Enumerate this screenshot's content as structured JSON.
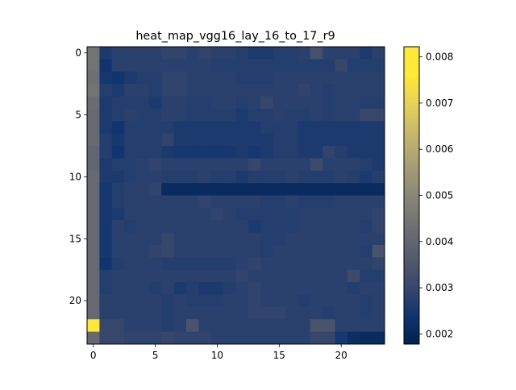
{
  "chart_data": {
    "type": "heatmap",
    "title": "heat_map_vgg16_lay_16_to_17_r9",
    "xlabel": "",
    "ylabel": "",
    "x_ticks": [
      0,
      5,
      10,
      15,
      20
    ],
    "y_ticks": [
      0,
      5,
      10,
      15,
      20
    ],
    "colorbar_ticks": [
      "0.002",
      "0.003",
      "0.004",
      "0.005",
      "0.006",
      "0.007",
      "0.008"
    ],
    "colorbar_range": [
      0.00178,
      0.00822
    ],
    "colormap": "cividis",
    "grid": false,
    "rows": 24,
    "cols": 24,
    "values": [
      [
        0.0044,
        0.0026,
        0.0028,
        0.0028,
        0.0028,
        0.0028,
        0.0029,
        0.0029,
        0.0028,
        0.0029,
        0.0028,
        0.0028,
        0.0027,
        0.0026,
        0.0026,
        0.0027,
        0.0027,
        0.0028,
        0.0033,
        0.0028,
        0.0028,
        0.0028,
        0.0026,
        0.0028
      ],
      [
        0.0044,
        0.0024,
        0.0028,
        0.0028,
        0.0028,
        0.0028,
        0.0028,
        0.0028,
        0.0028,
        0.0028,
        0.0027,
        0.0027,
        0.0027,
        0.0027,
        0.0027,
        0.0027,
        0.0027,
        0.0027,
        0.0027,
        0.0027,
        0.003,
        0.0027,
        0.0027,
        0.0027
      ],
      [
        0.0043,
        0.0025,
        0.0024,
        0.0026,
        0.0027,
        0.0027,
        0.0029,
        0.0029,
        0.0028,
        0.0028,
        0.0028,
        0.0028,
        0.0027,
        0.0027,
        0.0027,
        0.0028,
        0.0028,
        0.0028,
        0.0028,
        0.0028,
        0.0028,
        0.0028,
        0.0028,
        0.0028
      ],
      [
        0.0044,
        0.0027,
        0.0026,
        0.0028,
        0.0028,
        0.0027,
        0.0029,
        0.0029,
        0.0028,
        0.0028,
        0.0028,
        0.0028,
        0.0028,
        0.0028,
        0.0028,
        0.0028,
        0.0028,
        0.0029,
        0.0028,
        0.0027,
        0.0028,
        0.0028,
        0.0028,
        0.0028
      ],
      [
        0.0042,
        0.0026,
        0.0027,
        0.0027,
        0.0027,
        0.0026,
        0.0028,
        0.0028,
        0.0027,
        0.0027,
        0.0028,
        0.0028,
        0.0027,
        0.0028,
        0.003,
        0.0028,
        0.0028,
        0.0028,
        0.0028,
        0.0027,
        0.0028,
        0.0028,
        0.0027,
        0.0027
      ],
      [
        0.0041,
        0.0026,
        0.0027,
        0.0028,
        0.0027,
        0.0027,
        0.0028,
        0.0028,
        0.0027,
        0.0027,
        0.0027,
        0.0027,
        0.0026,
        0.0027,
        0.0027,
        0.0028,
        0.0027,
        0.0027,
        0.0028,
        0.0027,
        0.0028,
        0.0028,
        0.003,
        0.003
      ],
      [
        0.0041,
        0.0026,
        0.0024,
        0.0027,
        0.0027,
        0.0027,
        0.0027,
        0.0026,
        0.0026,
        0.0026,
        0.0026,
        0.0026,
        0.0026,
        0.0026,
        0.0027,
        0.0027,
        0.0027,
        0.0026,
        0.0026,
        0.0026,
        0.0026,
        0.0026,
        0.0026,
        0.0026
      ],
      [
        0.0041,
        0.0027,
        0.0025,
        0.0027,
        0.0027,
        0.0027,
        0.0029,
        0.0026,
        0.0026,
        0.0026,
        0.0026,
        0.0026,
        0.0026,
        0.0026,
        0.0026,
        0.0027,
        0.0027,
        0.0026,
        0.0026,
        0.0026,
        0.0026,
        0.0026,
        0.0026,
        0.0026
      ],
      [
        0.004,
        0.0027,
        0.0024,
        0.0027,
        0.0027,
        0.0027,
        0.0026,
        0.0025,
        0.0025,
        0.0025,
        0.0025,
        0.0025,
        0.0026,
        0.0025,
        0.0026,
        0.0027,
        0.0027,
        0.0026,
        0.0026,
        0.0029,
        0.0027,
        0.0026,
        0.0026,
        0.0026
      ],
      [
        0.004,
        0.0026,
        0.0027,
        0.0027,
        0.0028,
        0.0029,
        0.0028,
        0.0028,
        0.0028,
        0.0028,
        0.0028,
        0.0028,
        0.0028,
        0.003,
        0.0028,
        0.0028,
        0.0028,
        0.0028,
        0.0031,
        0.0028,
        0.0028,
        0.0028,
        0.0027,
        0.0026
      ],
      [
        0.0041,
        0.0026,
        0.0026,
        0.0027,
        0.0028,
        0.0028,
        0.0027,
        0.0027,
        0.0027,
        0.0028,
        0.0027,
        0.0027,
        0.0026,
        0.0027,
        0.0027,
        0.0027,
        0.0028,
        0.0027,
        0.0027,
        0.0027,
        0.0028,
        0.0027,
        0.0026,
        0.0027
      ],
      [
        0.0041,
        0.0025,
        0.0027,
        0.0028,
        0.0028,
        0.0029,
        0.0021,
        0.0021,
        0.0021,
        0.0021,
        0.0021,
        0.0021,
        0.0021,
        0.0021,
        0.0021,
        0.0021,
        0.0021,
        0.0021,
        0.0021,
        0.0021,
        0.0021,
        0.0021,
        0.0021,
        0.0021
      ],
      [
        0.0041,
        0.0025,
        0.0027,
        0.0028,
        0.0028,
        0.0028,
        0.0028,
        0.0028,
        0.0028,
        0.0029,
        0.0028,
        0.0028,
        0.0028,
        0.0028,
        0.0027,
        0.0027,
        0.0028,
        0.0027,
        0.0027,
        0.0027,
        0.0028,
        0.0028,
        0.0028,
        0.0028
      ],
      [
        0.0041,
        0.0025,
        0.0026,
        0.0028,
        0.0028,
        0.0028,
        0.0028,
        0.0028,
        0.0028,
        0.0028,
        0.0029,
        0.0028,
        0.0027,
        0.0027,
        0.0027,
        0.0027,
        0.0027,
        0.0028,
        0.0028,
        0.0028,
        0.0028,
        0.0028,
        0.0028,
        0.0029
      ],
      [
        0.0041,
        0.0025,
        0.0028,
        0.0027,
        0.0028,
        0.0028,
        0.0028,
        0.0028,
        0.0028,
        0.0028,
        0.0028,
        0.0028,
        0.0028,
        0.0026,
        0.0027,
        0.0027,
        0.0027,
        0.0028,
        0.0028,
        0.0028,
        0.0028,
        0.0028,
        0.0027,
        0.0029
      ],
      [
        0.0041,
        0.0025,
        0.0028,
        0.0028,
        0.0028,
        0.0028,
        0.003,
        0.0028,
        0.0028,
        0.0028,
        0.0028,
        0.0028,
        0.0028,
        0.0028,
        0.0027,
        0.0027,
        0.0028,
        0.0028,
        0.0028,
        0.0028,
        0.0028,
        0.0028,
        0.0028,
        0.0028
      ],
      [
        0.0041,
        0.0025,
        0.0028,
        0.0028,
        0.0028,
        0.0029,
        0.003,
        0.0028,
        0.0028,
        0.0028,
        0.0028,
        0.0028,
        0.0028,
        0.0028,
        0.0027,
        0.0028,
        0.0028,
        0.0028,
        0.0028,
        0.0028,
        0.0028,
        0.0028,
        0.0027,
        0.0034
      ],
      [
        0.0041,
        0.0024,
        0.0027,
        0.0028,
        0.0028,
        0.0028,
        0.0027,
        0.0027,
        0.0027,
        0.0027,
        0.0027,
        0.0027,
        0.0028,
        0.0029,
        0.0028,
        0.0028,
        0.0028,
        0.0028,
        0.0028,
        0.0028,
        0.0028,
        0.0028,
        0.0028,
        0.0029
      ],
      [
        0.0041,
        0.0027,
        0.0028,
        0.0028,
        0.0028,
        0.0028,
        0.0028,
        0.0028,
        0.0028,
        0.0028,
        0.0028,
        0.0028,
        0.0029,
        0.0028,
        0.0028,
        0.0028,
        0.0028,
        0.0028,
        0.0028,
        0.0028,
        0.0028,
        0.0031,
        0.0027,
        0.0027
      ],
      [
        0.0041,
        0.0027,
        0.0028,
        0.0028,
        0.0028,
        0.0027,
        0.0028,
        0.0026,
        0.0027,
        0.0026,
        0.0026,
        0.0027,
        0.0028,
        0.0029,
        0.0028,
        0.0028,
        0.0028,
        0.0028,
        0.0028,
        0.0028,
        0.0028,
        0.0027,
        0.0028,
        0.0028
      ],
      [
        0.0041,
        0.0028,
        0.0028,
        0.0028,
        0.0028,
        0.0028,
        0.0027,
        0.0028,
        0.0027,
        0.0027,
        0.0027,
        0.0028,
        0.0028,
        0.0029,
        0.0028,
        0.0028,
        0.0028,
        0.0027,
        0.0028,
        0.0028,
        0.0028,
        0.0028,
        0.0027,
        0.0028
      ],
      [
        0.0041,
        0.0028,
        0.0028,
        0.0028,
        0.0028,
        0.0028,
        0.0027,
        0.0028,
        0.0028,
        0.0028,
        0.0028,
        0.0028,
        0.0028,
        0.0029,
        0.0029,
        0.0029,
        0.0028,
        0.0028,
        0.0028,
        0.0027,
        0.0028,
        0.0028,
        0.0027,
        0.0028
      ],
      [
        0.0082,
        0.003,
        0.003,
        0.0028,
        0.0028,
        0.0028,
        0.0027,
        0.0028,
        0.0034,
        0.0028,
        0.0028,
        0.0028,
        0.0028,
        0.0028,
        0.0028,
        0.0028,
        0.0028,
        0.0028,
        0.0034,
        0.0034,
        0.0028,
        0.0028,
        0.0028,
        0.0028
      ],
      [
        0.0041,
        0.003,
        0.003,
        0.0029,
        0.0029,
        0.0029,
        0.003,
        0.0029,
        0.0029,
        0.0029,
        0.0028,
        0.0028,
        0.0028,
        0.0028,
        0.0028,
        0.0028,
        0.0028,
        0.0028,
        0.003,
        0.003,
        0.0025,
        0.0022,
        0.0021,
        0.0021
      ]
    ]
  }
}
